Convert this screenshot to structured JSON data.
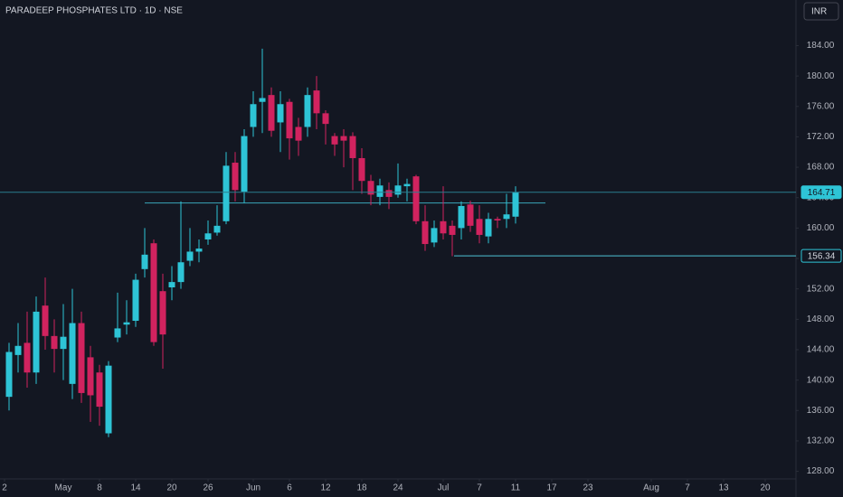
{
  "chart_data": {
    "type": "candlestick",
    "title": "PARADEEP PHOSPHATES LTD · 1D · NSE",
    "currency": "INR",
    "up_color": "#2ec4d6",
    "down_color": "#d1235f",
    "x": [
      0,
      1,
      2,
      3,
      4,
      5,
      6,
      7,
      8,
      9,
      10,
      11,
      12,
      13,
      14,
      15,
      16,
      17,
      18,
      19,
      20,
      21,
      22,
      23,
      24,
      25,
      26,
      27,
      28,
      29,
      30,
      31,
      32,
      33,
      34,
      35,
      36,
      37,
      38,
      39,
      40,
      41,
      42,
      43,
      44,
      45,
      46,
      47,
      48,
      49,
      50,
      51,
      52,
      53,
      54,
      55,
      56
    ],
    "open": [
      137.8,
      143.3,
      144.9,
      141,
      149.8,
      145.8,
      144.1,
      139.5,
      147.5,
      143,
      141,
      133,
      145.6,
      147.3,
      147.8,
      154.6,
      158,
      151.7,
      152.2,
      152.9,
      155.7,
      156.9,
      158.5,
      159.4,
      160.9,
      168.6,
      164.8,
      173.3,
      176.6,
      177.5,
      173.9,
      176.6,
      173.3,
      173.3,
      178.1,
      175.1,
      172.1,
      172.1,
      172.1,
      169.2,
      166.2,
      164.1,
      165,
      164.4,
      165.5,
      166.8,
      160.9,
      158.1,
      160.9,
      160.3,
      160,
      163.1,
      161.2,
      158.9,
      161.2,
      161.2,
      161.5
    ],
    "high": [
      144.9,
      147.5,
      149,
      151,
      153.5,
      148,
      150,
      152,
      149,
      144.5,
      142,
      142.5,
      151.5,
      150.5,
      154,
      160,
      158.5,
      154,
      155,
      163.5,
      160,
      158.5,
      161,
      163,
      170,
      170,
      173,
      178,
      183.6,
      178.5,
      178,
      177,
      174.5,
      178.5,
      180,
      175.5,
      172.5,
      173,
      172.6,
      170.5,
      167,
      166.5,
      166,
      168.5,
      166.5,
      167,
      163,
      161,
      165.5,
      161,
      163.5,
      163.6,
      163,
      162,
      161.5,
      164.5,
      165.5
    ],
    "low": [
      136,
      141,
      139,
      139.5,
      144,
      141,
      140,
      137.5,
      137,
      134.5,
      134,
      132.5,
      145,
      146,
      147,
      153.5,
      144.5,
      141.5,
      150.5,
      152,
      155,
      155.5,
      157.8,
      159,
      160.5,
      163.5,
      163.3,
      172,
      172.5,
      172,
      170,
      169,
      169.5,
      172,
      173,
      171,
      169.5,
      168,
      165,
      164.5,
      163,
      163,
      162.5,
      164,
      163.5,
      160.5,
      157,
      157.5,
      158.5,
      156.3,
      158.5,
      159.5,
      158,
      158,
      160,
      160,
      160.6
    ],
    "close": [
      143.7,
      144.5,
      141,
      149,
      145.8,
      144.1,
      145.7,
      147.5,
      138.3,
      138,
      136.5,
      141.9,
      146.8,
      147.6,
      153.2,
      156.5,
      145,
      146,
      152.9,
      155.5,
      156.9,
      157.3,
      159.3,
      160.3,
      168.2,
      165,
      172.1,
      176.3,
      177.1,
      172.8,
      176.3,
      171.8,
      171.5,
      177.5,
      175.1,
      173.7,
      171,
      171.5,
      169.2,
      166.2,
      164.4,
      165.6,
      164.1,
      165.6,
      165.8,
      160.9,
      157.9,
      160,
      159.3,
      159.1,
      162.9,
      160.3,
      159.1,
      161.2,
      161,
      161.8,
      164.7
    ],
    "xlim": [
      -1,
      87
    ],
    "xticks": [
      {
        "value": -0.5,
        "label": "2"
      },
      {
        "value": 6,
        "label": "May"
      },
      {
        "value": 10,
        "label": "8"
      },
      {
        "value": 14,
        "label": "14"
      },
      {
        "value": 18,
        "label": "20"
      },
      {
        "value": 22,
        "label": "26"
      },
      {
        "value": 27,
        "label": "Jun"
      },
      {
        "value": 31,
        "label": "6"
      },
      {
        "value": 35,
        "label": "12"
      },
      {
        "value": 39,
        "label": "18"
      },
      {
        "value": 43,
        "label": "24"
      },
      {
        "value": 48,
        "label": "Jul"
      },
      {
        "value": 52,
        "label": "7"
      },
      {
        "value": 56,
        "label": "11"
      },
      {
        "value": 60,
        "label": "17"
      },
      {
        "value": 64,
        "label": "23"
      },
      {
        "value": 71,
        "label": "Aug"
      },
      {
        "value": 75,
        "label": "7"
      },
      {
        "value": 79,
        "label": "13"
      },
      {
        "value": 83.6,
        "label": "20"
      }
    ],
    "ylim": [
      127,
      190
    ],
    "yticks": [
      {
        "value": 128,
        "label": "128.00"
      },
      {
        "value": 132,
        "label": "132.00"
      },
      {
        "value": 136,
        "label": "136.00"
      },
      {
        "value": 140,
        "label": "140.00"
      },
      {
        "value": 144,
        "label": "144.00"
      },
      {
        "value": 148,
        "label": "148.00"
      },
      {
        "value": 152,
        "label": "152.00"
      },
      {
        "value": 156,
        "label": "156.00"
      },
      {
        "value": 160,
        "label": "160.00"
      },
      {
        "value": 164,
        "label": "164.00"
      },
      {
        "value": 168,
        "label": "168.00"
      },
      {
        "value": 172,
        "label": "172.00"
      },
      {
        "value": 176,
        "label": "176.00"
      },
      {
        "value": 180,
        "label": "180.00"
      },
      {
        "value": 184,
        "label": "184.00"
      }
    ],
    "grid": false,
    "price_lines": [
      {
        "value": 164.71,
        "color": "#2a7f8e"
      },
      {
        "value": 156.34,
        "x_start": 49.2,
        "color": "#4fc3d6"
      }
    ],
    "trend_lines": [
      {
        "value": 163.3,
        "x": [
          15,
          59.3
        ],
        "color": "#3aa6b9"
      }
    ]
  }
}
